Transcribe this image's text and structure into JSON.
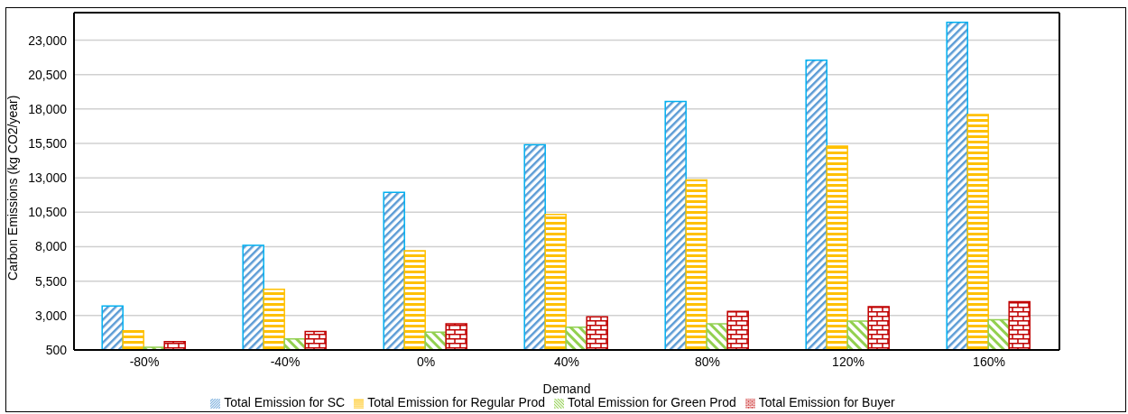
{
  "chart_data": {
    "type": "bar",
    "xlabel": "Demand",
    "ylabel": "Carbon Emissions (kg CO2/year)",
    "categories": [
      "-80%",
      "-40%",
      "0%",
      "40%",
      "80%",
      "120%",
      "160%"
    ],
    "series": [
      {
        "name": "Total Emission for SC",
        "color": "#00b0f0",
        "values": [
          3700,
          8100,
          11950,
          15400,
          18550,
          21550,
          24300
        ]
      },
      {
        "name": "Total Emission for Regular Prod",
        "color": "#ffc000",
        "values": [
          1900,
          4900,
          7700,
          10350,
          12850,
          15300,
          17600
        ]
      },
      {
        "name": "Total Emission for Green Prod",
        "color": "#92d050",
        "values": [
          700,
          1300,
          1800,
          2150,
          2400,
          2600,
          2700
        ]
      },
      {
        "name": "Total Emission for Buyer",
        "color": "#c00000",
        "values": [
          1100,
          1850,
          2400,
          2900,
          3300,
          3650,
          4000
        ]
      }
    ],
    "ylim": [
      500,
      25000
    ],
    "yticks": [
      500,
      {
        "value": 3000,
        "label": "3,000"
      },
      {
        "value": 5500,
        "label": "5,500"
      },
      {
        "value": 8000,
        "label": "8,000"
      },
      {
        "value": 10500,
        "label": "10,500"
      },
      {
        "value": 13000,
        "label": "13,000"
      },
      {
        "value": 15500,
        "label": "15,500"
      },
      {
        "value": 18000,
        "label": "18,000"
      },
      {
        "value": 20500,
        "label": "20,500"
      },
      {
        "value": 23000,
        "label": "23,000"
      }
    ],
    "grid": "y",
    "legend": "bottom"
  }
}
